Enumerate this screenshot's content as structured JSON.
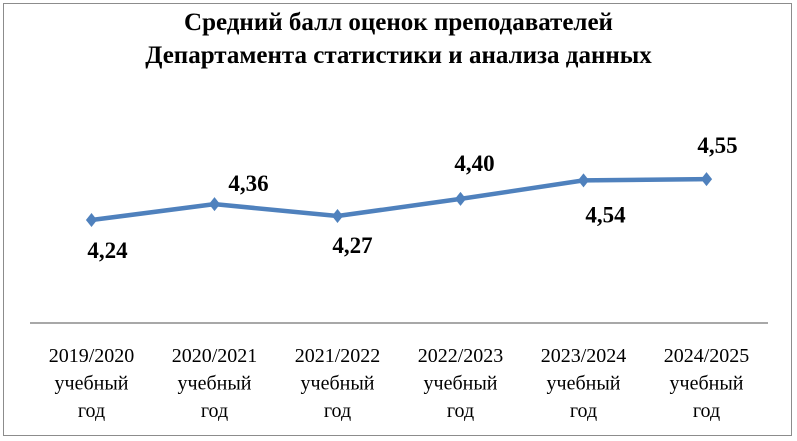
{
  "chart_data": {
    "type": "line",
    "title": [
      "Средний балл оценок преподавателей",
      "Департамента статистики и анализа данных"
    ],
    "categories": [
      [
        "2019/2020",
        "учебный",
        "год"
      ],
      [
        "2020/2021",
        "учебный",
        "год"
      ],
      [
        "2021/2022",
        "учебный",
        "год"
      ],
      [
        "2022/2023",
        "учебный",
        "год"
      ],
      [
        "2023/2024",
        "учебный",
        "год"
      ],
      [
        "2024/2025",
        "учебный",
        "год"
      ]
    ],
    "values": [
      4.24,
      4.36,
      4.27,
      4.4,
      4.54,
      4.55
    ],
    "data_labels": [
      "4,24",
      "4,36",
      "4,27",
      "4,40",
      "4,54",
      "4,55"
    ],
    "marker": "diamond",
    "line_color": "#4f81bd",
    "grid": false,
    "y_axis_visible": false,
    "legend": "none"
  }
}
